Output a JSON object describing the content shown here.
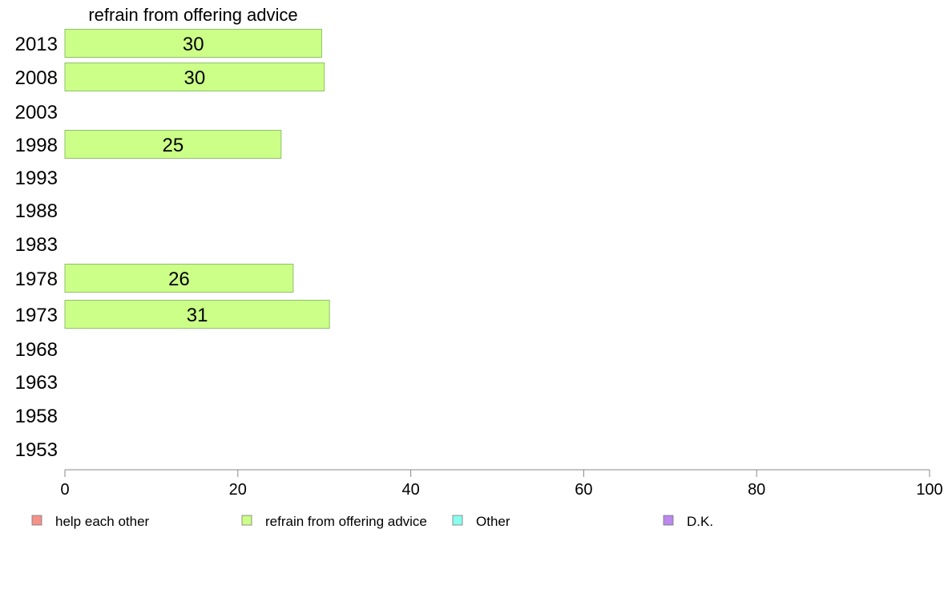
{
  "chart_data": {
    "type": "bar",
    "orientation": "horizontal",
    "title": "refrain from offering advice",
    "categories": [
      "2013",
      "2008",
      "2003",
      "1998",
      "1993",
      "1988",
      "1983",
      "1978",
      "1973",
      "1968",
      "1963",
      "1958",
      "1953"
    ],
    "series": [
      {
        "name": "refrain from offering advice",
        "color": "#ccff88",
        "values": [
          29.7,
          30.0,
          null,
          25.0,
          null,
          null,
          null,
          26.4,
          30.6,
          null,
          null,
          null,
          null
        ],
        "labels": [
          "30",
          "30",
          "",
          "25",
          "",
          "",
          "",
          "26",
          "31",
          "",
          "",
          "",
          ""
        ]
      }
    ],
    "xlim": [
      0,
      100
    ],
    "xticks": [
      "0",
      "20",
      "40",
      "60",
      "80",
      "100"
    ],
    "grid": false,
    "legend": {
      "placement": "bottom",
      "items": [
        {
          "label": "help each other",
          "color": "#f4928a"
        },
        {
          "label": "refrain from offering advice",
          "color": "#ccff88"
        },
        {
          "label": "Other",
          "color": "#88ffee"
        },
        {
          "label": "D.K.",
          "color": "#bb88ee"
        }
      ]
    }
  }
}
